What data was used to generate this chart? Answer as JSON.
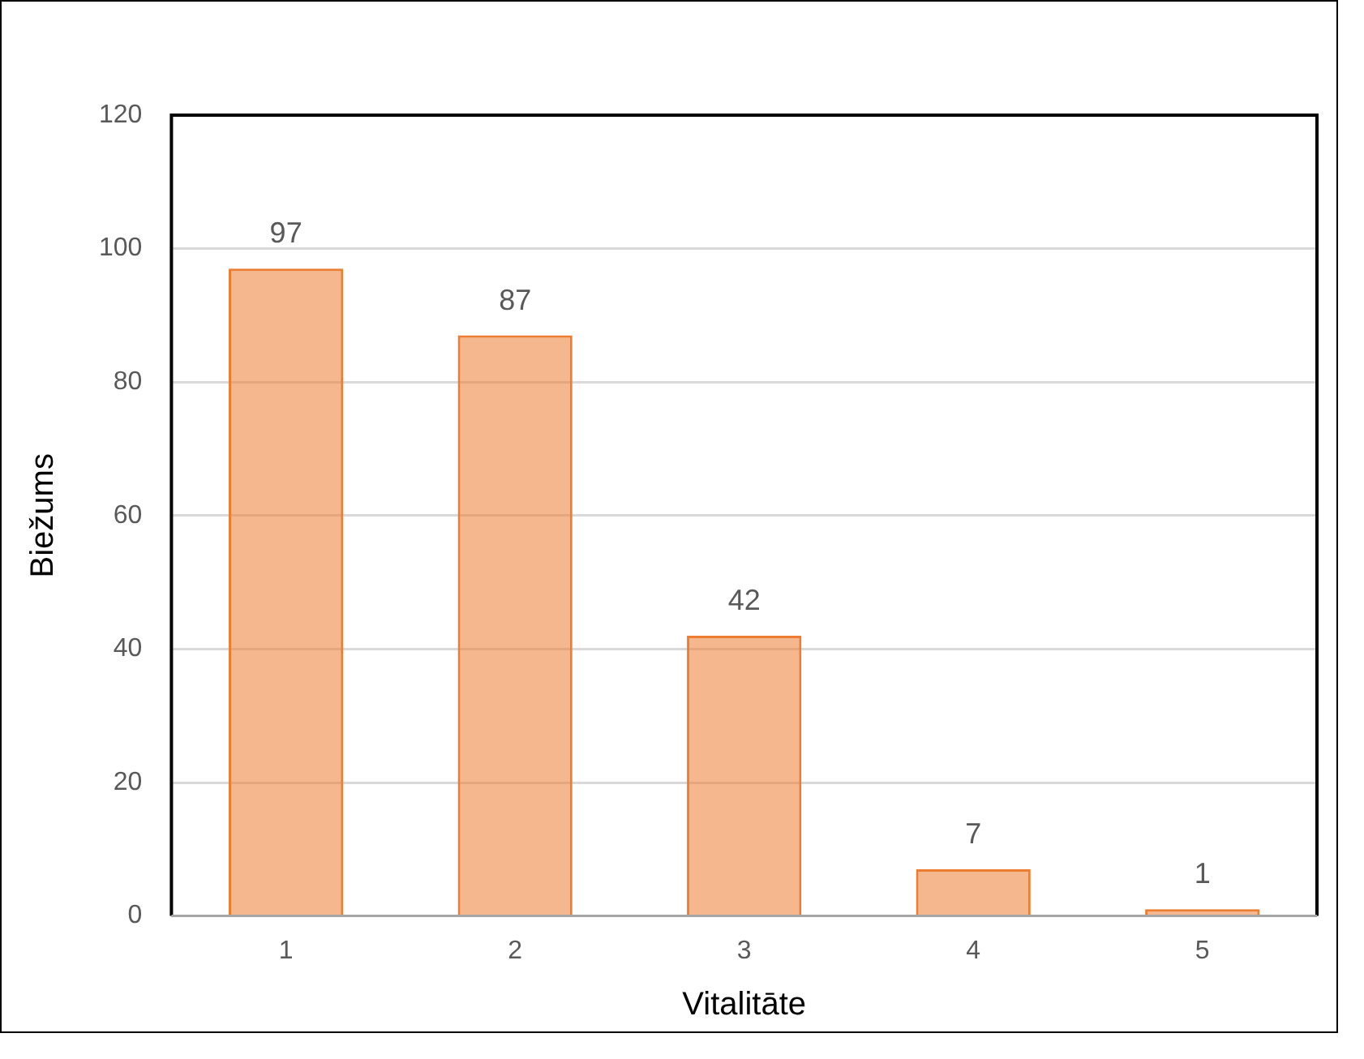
{
  "chart_data": {
    "type": "bar",
    "xlabel": "Vitalitāte",
    "ylabel": "Biežums",
    "categories": [
      "1",
      "2",
      "3",
      "4",
      "5"
    ],
    "values": [
      97,
      87,
      42,
      7,
      1
    ],
    "color": "#ed7d31",
    "ylim": [
      0,
      120
    ],
    "yticks": [
      0,
      20,
      40,
      60,
      80,
      100,
      120
    ],
    "grid": "y",
    "data_labels": true
  }
}
